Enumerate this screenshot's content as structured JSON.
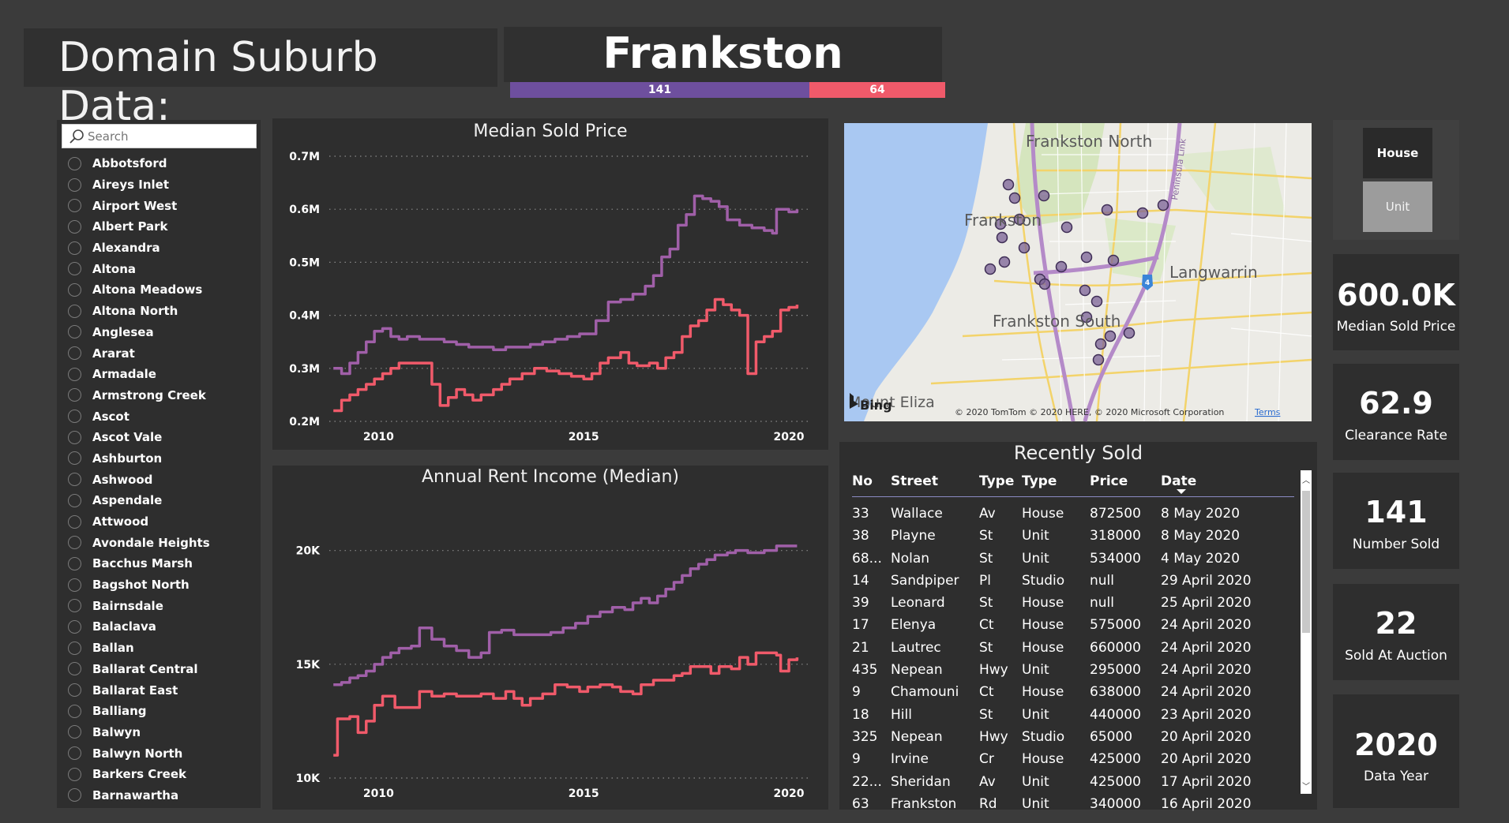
{
  "header": {
    "title": "Domain Suburb Data:",
    "suburb": "Frankston",
    "counts": [
      {
        "label": "141",
        "value": 141,
        "color": "#6e4f9e"
      },
      {
        "label": "64",
        "value": 64,
        "color": "#f05a6a"
      }
    ]
  },
  "slicer": {
    "placeholder": "Search",
    "items": [
      "Abbotsford",
      "Aireys Inlet",
      "Airport West",
      "Albert Park",
      "Alexandra",
      "Altona",
      "Altona Meadows",
      "Altona North",
      "Anglesea",
      "Ararat",
      "Armadale",
      "Armstrong Creek",
      "Ascot",
      "Ascot Vale",
      "Ashburton",
      "Ashwood",
      "Aspendale",
      "Attwood",
      "Avondale Heights",
      "Bacchus Marsh",
      "Bagshot North",
      "Bairnsdale",
      "Balaclava",
      "Ballan",
      "Ballarat Central",
      "Ballarat East",
      "Balliang",
      "Balwyn",
      "Balwyn North",
      "Barkers Creek",
      "Barnawartha"
    ]
  },
  "colors": {
    "house": "#a05fa8",
    "unit": "#f05a6a",
    "panel": "#2e2e2e",
    "background": "#3b3b3b"
  },
  "chart_data": [
    {
      "type": "line",
      "title": "Median Sold Price",
      "xlabel": "",
      "ylabel": "",
      "x_ticks": [
        "2010",
        "2015",
        "2020"
      ],
      "x_tick_values": [
        2010,
        2015,
        2020
      ],
      "y_ticks": [
        "0.7M",
        "0.6M",
        "0.5M",
        "0.4M",
        "0.3M",
        "0.2M"
      ],
      "y_tick_values": [
        0.7,
        0.6,
        0.5,
        0.4,
        0.3,
        0.2
      ],
      "xlim": [
        2008.8,
        2020.5
      ],
      "ylim": [
        0.2,
        0.7
      ],
      "step": true,
      "series": [
        {
          "color": "#a05fa8",
          "points": [
            [
              2008.9,
              0.3
            ],
            [
              2009.1,
              0.29
            ],
            [
              2009.3,
              0.31
            ],
            [
              2009.5,
              0.33
            ],
            [
              2009.7,
              0.35
            ],
            [
              2009.9,
              0.37
            ],
            [
              2010.1,
              0.375
            ],
            [
              2010.3,
              0.36
            ],
            [
              2010.5,
              0.355
            ],
            [
              2010.7,
              0.36
            ],
            [
              2011,
              0.355
            ],
            [
              2011.3,
              0.355
            ],
            [
              2011.6,
              0.35
            ],
            [
              2011.9,
              0.345
            ],
            [
              2012.2,
              0.34
            ],
            [
              2012.5,
              0.34
            ],
            [
              2012.8,
              0.335
            ],
            [
              2013.1,
              0.34
            ],
            [
              2013.4,
              0.34
            ],
            [
              2013.7,
              0.345
            ],
            [
              2014,
              0.35
            ],
            [
              2014.3,
              0.355
            ],
            [
              2014.6,
              0.36
            ],
            [
              2014.9,
              0.365
            ],
            [
              2015.1,
              0.365
            ],
            [
              2015.3,
              0.39
            ],
            [
              2015.6,
              0.425
            ],
            [
              2015.9,
              0.43
            ],
            [
              2016.2,
              0.44
            ],
            [
              2016.5,
              0.455
            ],
            [
              2016.7,
              0.475
            ],
            [
              2016.9,
              0.51
            ],
            [
              2017.1,
              0.525
            ],
            [
              2017.3,
              0.57
            ],
            [
              2017.5,
              0.59
            ],
            [
              2017.7,
              0.625
            ],
            [
              2017.9,
              0.62
            ],
            [
              2018.1,
              0.615
            ],
            [
              2018.3,
              0.605
            ],
            [
              2018.5,
              0.58
            ],
            [
              2018.8,
              0.57
            ],
            [
              2019.1,
              0.565
            ],
            [
              2019.4,
              0.56
            ],
            [
              2019.6,
              0.555
            ],
            [
              2019.7,
              0.6
            ],
            [
              2020.0,
              0.595
            ],
            [
              2020.2,
              0.6
            ]
          ]
        },
        {
          "color": "#f05a6a",
          "points": [
            [
              2008.9,
              0.22
            ],
            [
              2009.1,
              0.24
            ],
            [
              2009.3,
              0.25
            ],
            [
              2009.5,
              0.26
            ],
            [
              2009.7,
              0.27
            ],
            [
              2009.9,
              0.28
            ],
            [
              2010.1,
              0.29
            ],
            [
              2010.3,
              0.3
            ],
            [
              2010.5,
              0.31
            ],
            [
              2010.8,
              0.31
            ],
            [
              2011.1,
              0.31
            ],
            [
              2011.3,
              0.27
            ],
            [
              2011.5,
              0.23
            ],
            [
              2011.7,
              0.245
            ],
            [
              2011.9,
              0.26
            ],
            [
              2012.1,
              0.25
            ],
            [
              2012.3,
              0.24
            ],
            [
              2012.5,
              0.25
            ],
            [
              2012.8,
              0.26
            ],
            [
              2013,
              0.27
            ],
            [
              2013.2,
              0.28
            ],
            [
              2013.5,
              0.29
            ],
            [
              2013.8,
              0.3
            ],
            [
              2014.1,
              0.295
            ],
            [
              2014.4,
              0.29
            ],
            [
              2014.7,
              0.285
            ],
            [
              2015,
              0.28
            ],
            [
              2015.2,
              0.29
            ],
            [
              2015.4,
              0.31
            ],
            [
              2015.6,
              0.32
            ],
            [
              2015.9,
              0.33
            ],
            [
              2016.1,
              0.31
            ],
            [
              2016.3,
              0.305
            ],
            [
              2016.6,
              0.31
            ],
            [
              2016.8,
              0.3
            ],
            [
              2017,
              0.32
            ],
            [
              2017.2,
              0.33
            ],
            [
              2017.4,
              0.36
            ],
            [
              2017.6,
              0.38
            ],
            [
              2017.8,
              0.39
            ],
            [
              2018,
              0.41
            ],
            [
              2018.2,
              0.43
            ],
            [
              2018.4,
              0.42
            ],
            [
              2018.6,
              0.41
            ],
            [
              2018.8,
              0.4
            ],
            [
              2019.0,
              0.29
            ],
            [
              2019.2,
              0.35
            ],
            [
              2019.4,
              0.36
            ],
            [
              2019.6,
              0.37
            ],
            [
              2019.8,
              0.41
            ],
            [
              2020.0,
              0.415
            ],
            [
              2020.2,
              0.42
            ]
          ]
        }
      ]
    },
    {
      "type": "line",
      "title": "Annual Rent Income (Median)",
      "xlabel": "",
      "ylabel": "",
      "x_ticks": [
        "2010",
        "2015",
        "2020"
      ],
      "x_tick_values": [
        2010,
        2015,
        2020
      ],
      "y_ticks": [
        "20K",
        "15K",
        "10K"
      ],
      "y_tick_values": [
        20000,
        15000,
        10000
      ],
      "xlim": [
        2008.8,
        2020.5
      ],
      "ylim": [
        10000,
        22000
      ],
      "step": true,
      "series": [
        {
          "color": "#a05fa8",
          "points": [
            [
              2008.9,
              14100
            ],
            [
              2009.1,
              14200
            ],
            [
              2009.3,
              14400
            ],
            [
              2009.5,
              14500
            ],
            [
              2009.7,
              14700
            ],
            [
              2009.9,
              15000
            ],
            [
              2010.1,
              15300
            ],
            [
              2010.3,
              15500
            ],
            [
              2010.5,
              15700
            ],
            [
              2010.8,
              15800
            ],
            [
              2011.0,
              16600
            ],
            [
              2011.3,
              16100
            ],
            [
              2011.6,
              15800
            ],
            [
              2011.9,
              15600
            ],
            [
              2012.2,
              15300
            ],
            [
              2012.5,
              15500
            ],
            [
              2012.7,
              16400
            ],
            [
              2013.0,
              16500
            ],
            [
              2013.3,
              16300
            ],
            [
              2013.6,
              16300
            ],
            [
              2013.9,
              16300
            ],
            [
              2014.2,
              16400
            ],
            [
              2014.5,
              16600
            ],
            [
              2014.8,
              16800
            ],
            [
              2015.1,
              17100
            ],
            [
              2015.4,
              17300
            ],
            [
              2015.7,
              17500
            ],
            [
              2016.0,
              17400
            ],
            [
              2016.2,
              17700
            ],
            [
              2016.4,
              17900
            ],
            [
              2016.6,
              17700
            ],
            [
              2016.8,
              18000
            ],
            [
              2017.0,
              18300
            ],
            [
              2017.2,
              18600
            ],
            [
              2017.4,
              18900
            ],
            [
              2017.6,
              19200
            ],
            [
              2017.8,
              19400
            ],
            [
              2018.0,
              19600
            ],
            [
              2018.2,
              19800
            ],
            [
              2018.5,
              19900
            ],
            [
              2018.7,
              20000
            ],
            [
              2019.0,
              19900
            ],
            [
              2019.2,
              19900
            ],
            [
              2019.4,
              20000
            ],
            [
              2019.7,
              20200
            ],
            [
              2020.0,
              20200
            ],
            [
              2020.2,
              20200
            ]
          ]
        },
        {
          "color": "#f05a6a",
          "points": [
            [
              2008.9,
              11000
            ],
            [
              2009.0,
              12600
            ],
            [
              2009.3,
              12700
            ],
            [
              2009.5,
              12000
            ],
            [
              2009.7,
              12500
            ],
            [
              2009.9,
              13200
            ],
            [
              2010.1,
              13600
            ],
            [
              2010.4,
              13100
            ],
            [
              2010.7,
              13100
            ],
            [
              2011,
              13800
            ],
            [
              2011.3,
              13600
            ],
            [
              2011.6,
              13700
            ],
            [
              2011.9,
              13600
            ],
            [
              2012.2,
              13600
            ],
            [
              2012.5,
              13700
            ],
            [
              2012.8,
              13500
            ],
            [
              2013.1,
              13800
            ],
            [
              2013.3,
              13500
            ],
            [
              2013.5,
              13200
            ],
            [
              2013.7,
              13500
            ],
            [
              2014.0,
              13700
            ],
            [
              2014.3,
              14100
            ],
            [
              2014.6,
              14000
            ],
            [
              2014.9,
              13800
            ],
            [
              2015.1,
              14000
            ],
            [
              2015.4,
              14100
            ],
            [
              2015.7,
              14000
            ],
            [
              2015.9,
              13800
            ],
            [
              2016.2,
              13700
            ],
            [
              2016.4,
              14100
            ],
            [
              2016.7,
              14300
            ],
            [
              2017.0,
              14300
            ],
            [
              2017.2,
              14500
            ],
            [
              2017.4,
              14600
            ],
            [
              2017.6,
              14900
            ],
            [
              2017.9,
              14900
            ],
            [
              2018.1,
              14600
            ],
            [
              2018.3,
              14900
            ],
            [
              2018.6,
              14800
            ],
            [
              2018.8,
              15300
            ],
            [
              2019.0,
              15000
            ],
            [
              2019.2,
              15500
            ],
            [
              2019.5,
              15500
            ],
            [
              2019.7,
              15400
            ],
            [
              2019.8,
              14700
            ],
            [
              2020.0,
              15200
            ],
            [
              2020.2,
              15300
            ]
          ]
        }
      ]
    }
  ],
  "map": {
    "labels": [
      "Frankston North",
      "Frankston",
      "Langwarrin",
      "Frankston South",
      "Mount Eliza",
      "Peninsula Link"
    ],
    "attribution": "© 2020 TomTom © 2020 HERE, © 2020 Microsoft Corporation",
    "terms": "Terms",
    "brand": "Bing",
    "route_badge": "4"
  },
  "table": {
    "title": "Recently Sold",
    "headers": [
      "No",
      "Street",
      "Type",
      "Type",
      "Price",
      "Date"
    ],
    "rows": [
      [
        "33",
        "Wallace",
        "Av",
        "House",
        "872500",
        "8 May 2020"
      ],
      [
        "38",
        "Playne",
        "St",
        "Unit",
        "318000",
        "8 May 2020"
      ],
      [
        "68...",
        "Nolan",
        "St",
        "Unit",
        "534000",
        "4 May 2020"
      ],
      [
        "14",
        "Sandpiper",
        "Pl",
        "Studio",
        "null",
        "29 April 2020"
      ],
      [
        "39",
        "Leonard",
        "St",
        "House",
        "null",
        "25 April 2020"
      ],
      [
        "17",
        "Elenya",
        "Ct",
        "House",
        "575000",
        "24 April 2020"
      ],
      [
        "21",
        "Lautrec",
        "St",
        "House",
        "660000",
        "24 April 2020"
      ],
      [
        "435",
        "Nepean",
        "Hwy",
        "Unit",
        "295000",
        "24 April 2020"
      ],
      [
        "9",
        "Chamouni",
        "Ct",
        "House",
        "638000",
        "24 April 2020"
      ],
      [
        "18",
        "Hill",
        "St",
        "Unit",
        "440000",
        "23 April 2020"
      ],
      [
        "325",
        "Nepean",
        "Hwy",
        "Studio",
        "65000",
        "20 April 2020"
      ],
      [
        "9",
        "Irvine",
        "Cr",
        "House",
        "425000",
        "20 April 2020"
      ],
      [
        "22...",
        "Sheridan",
        "Av",
        "Unit",
        "425000",
        "17 April 2020"
      ],
      [
        "63",
        "Frankston",
        "Rd",
        "Unit",
        "340000",
        "16 April 2020"
      ]
    ]
  },
  "toggle": {
    "house": "House",
    "unit": "Unit"
  },
  "kpis": [
    {
      "value": "600.0K",
      "label": "Median Sold Price"
    },
    {
      "value": "62.9",
      "label": "Clearance Rate"
    },
    {
      "value": "141",
      "label": "Number Sold"
    },
    {
      "value": "22",
      "label": "Sold At Auction"
    },
    {
      "value": "2020",
      "label": "Data Year"
    }
  ]
}
